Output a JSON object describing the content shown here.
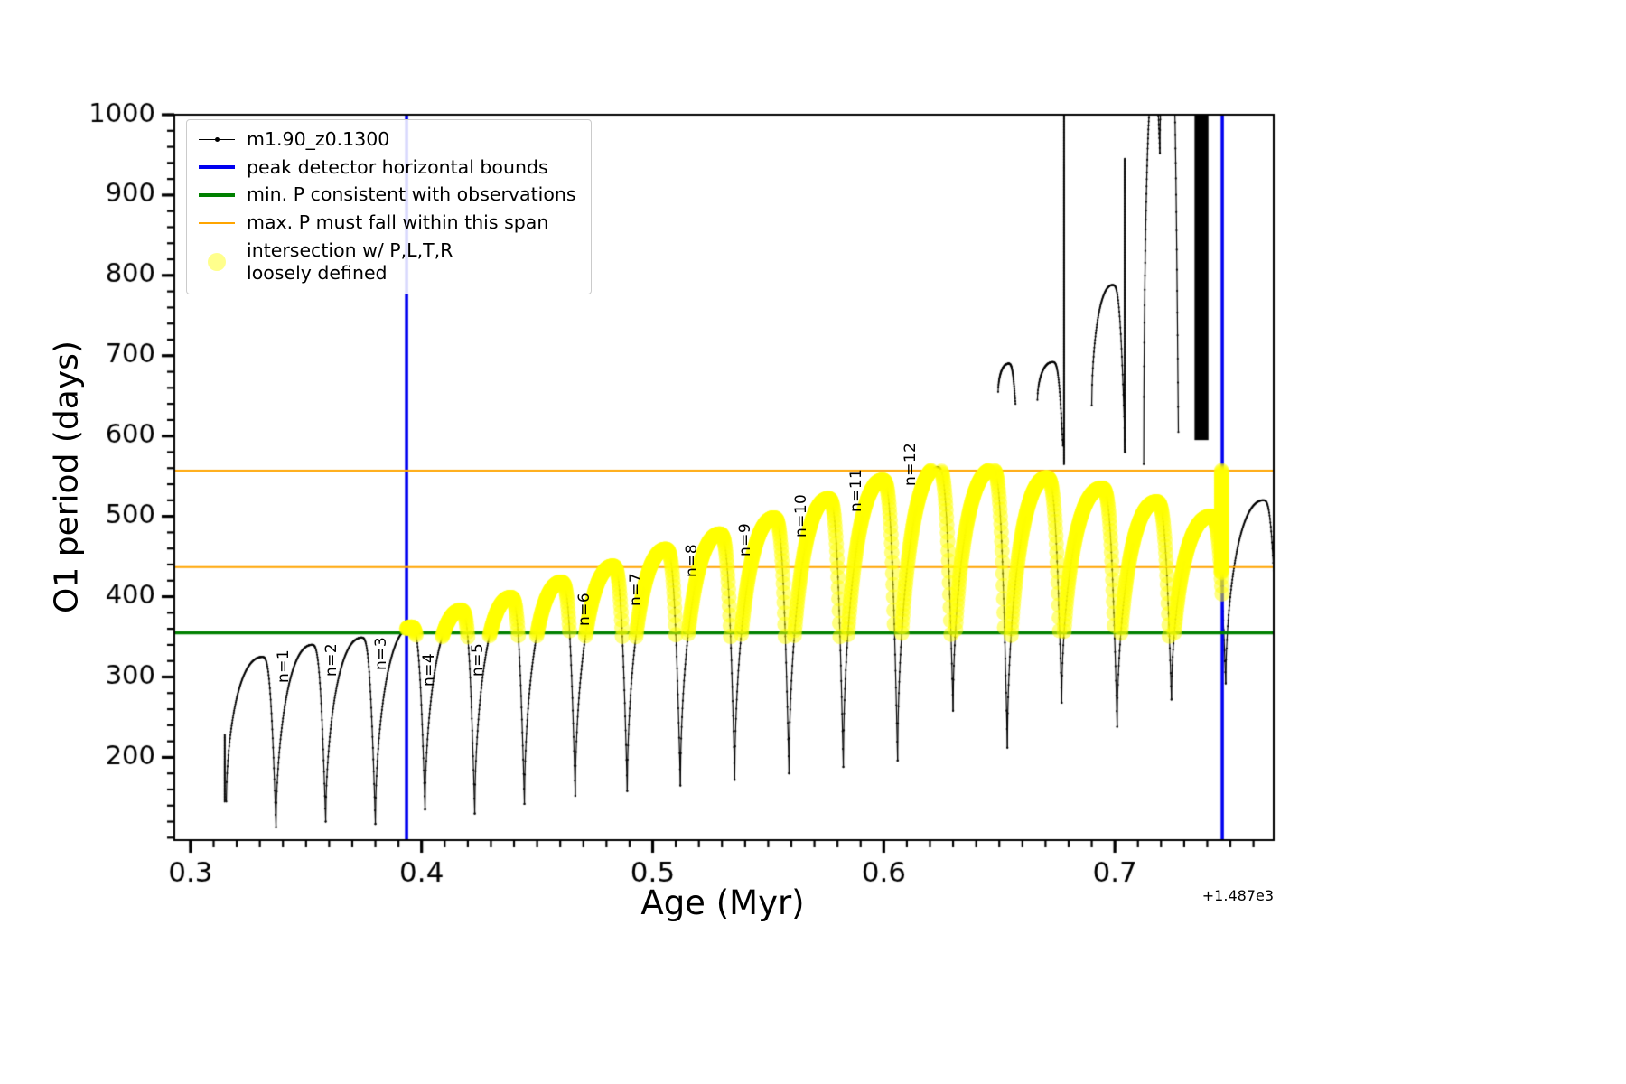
{
  "chart_data": {
    "type": "line",
    "title": "",
    "xlabel": "Age (Myr)",
    "ylabel": "O1 period (days)",
    "x_offset_text": "+1.487e3",
    "xlim": [
      0.293,
      0.76875
    ],
    "ylim": [
      97,
      1000
    ],
    "x_major_ticks": [
      0.3,
      0.4,
      0.5,
      0.6,
      0.7
    ],
    "x_tick_labels": [
      "0.3",
      "0.4",
      "0.5",
      "0.6",
      "0.7"
    ],
    "x_minor_step": 0.01,
    "y_major_ticks": [
      200,
      300,
      400,
      500,
      600,
      700,
      800,
      900,
      1000
    ],
    "y_tick_labels": [
      "200",
      "300",
      "400",
      "500",
      "600",
      "700",
      "800",
      "900",
      "1000"
    ],
    "y_minor_step": 20,
    "grid": false,
    "legend_position": "upper left",
    "legend": {
      "items": [
        {
          "label": "m1.90_z0.1300",
          "marker": "line-with-dot",
          "color": "#000000"
        },
        {
          "label": "peak detector horizontal bounds",
          "marker": "thick-line",
          "color": "#0000f0"
        },
        {
          "label": "min. P consistent with observations",
          "marker": "thick-line",
          "color": "#008000"
        },
        {
          "label": "max. P must fall within this span",
          "marker": "thin-line",
          "color": "#ffa500"
        },
        {
          "label": "intersection w/ P,L,T,R\nloosely defined",
          "marker": "circle",
          "color": "#ffff00"
        }
      ]
    },
    "vlines": {
      "color": "#0000f0",
      "x": [
        0.3935,
        0.7465
      ],
      "linewidth": 3.5
    },
    "hlines_green": {
      "color": "#008000",
      "y": [
        355
      ],
      "linewidth": 3.5
    },
    "hlines_orange": {
      "color": "#ffa500",
      "y": [
        557,
        437
      ],
      "linewidth": 2
    },
    "yellow_band": {
      "color": "#ffff00",
      "alpha": 0.5,
      "y_range": [
        350,
        557
      ],
      "x_range": [
        0.3935,
        0.7465
      ],
      "marker_radius": 8.5
    },
    "series": {
      "name": "m1.90_z0.1300",
      "color": "#000000",
      "arcs": [
        [
          0.3155,
          0.337,
          145,
          325,
          113
        ],
        [
          0.337,
          0.3585,
          113,
          340,
          120
        ],
        [
          0.3585,
          0.38,
          120,
          349,
          117
        ],
        [
          0.38,
          0.4015,
          117,
          362,
          135
        ],
        [
          0.4015,
          0.423,
          135,
          383,
          130
        ],
        [
          0.423,
          0.4445,
          130,
          399,
          142
        ],
        [
          0.4445,
          0.4665,
          142,
          418,
          152
        ],
        [
          0.4665,
          0.489,
          152,
          438,
          158
        ],
        [
          0.489,
          0.512,
          158,
          459,
          165
        ],
        [
          0.512,
          0.5355,
          165,
          478,
          172
        ],
        [
          0.5355,
          0.559,
          172,
          498,
          180
        ],
        [
          0.559,
          0.5825,
          180,
          522,
          188
        ],
        [
          0.5825,
          0.606,
          188,
          545,
          196
        ],
        [
          0.606,
          0.63,
          196,
          561,
          258
        ],
        [
          0.63,
          0.6535,
          258,
          558,
          212
        ],
        [
          0.6535,
          0.677,
          212,
          548,
          268
        ],
        [
          0.677,
          0.701,
          268,
          535,
          238
        ],
        [
          0.701,
          0.7245,
          238,
          518,
          272
        ],
        [
          0.7245,
          0.748,
          272,
          500,
          292
        ],
        [
          0.748,
          0.7705,
          292,
          520,
          300
        ],
        [
          0.6495,
          0.657,
          655,
          690,
          640,
          0.6
        ],
        [
          0.6665,
          0.6775,
          645,
          692,
          588,
          0.6
        ],
        [
          0.69,
          0.7045,
          638,
          788,
          580,
          0.62
        ],
        [
          0.7125,
          0.7195,
          565,
          1045,
          952,
          0.6
        ],
        [
          0.7195,
          0.7275,
          952,
          1110,
          605,
          0.55
        ]
      ],
      "spikes": [
        [
          0.3148,
          145,
          228
        ],
        [
          0.678,
          565,
          1000
        ],
        [
          0.7043,
          580,
          945
        ],
        [
          0.7462,
          430,
          557
        ]
      ],
      "solid_band": [
        0.7345,
        0.7405,
        595,
        1002
      ]
    },
    "peak_labels": [
      {
        "text": "n=1",
        "x": 0.339,
        "y": 293
      },
      {
        "text": "n=2",
        "x": 0.36,
        "y": 300
      },
      {
        "text": "n=3",
        "x": 0.3812,
        "y": 308
      },
      {
        "text": "n=4",
        "x": 0.4022,
        "y": 288
      },
      {
        "text": "n=5",
        "x": 0.4232,
        "y": 300
      },
      {
        "text": "n=6",
        "x": 0.4692,
        "y": 363
      },
      {
        "text": "n=7",
        "x": 0.4914,
        "y": 388
      },
      {
        "text": "n=8",
        "x": 0.5158,
        "y": 424
      },
      {
        "text": "n=9",
        "x": 0.539,
        "y": 450
      },
      {
        "text": "n=10",
        "x": 0.5633,
        "y": 474
      },
      {
        "text": "n=11",
        "x": 0.587,
        "y": 505
      },
      {
        "text": "n=12",
        "x": 0.6106,
        "y": 538
      }
    ]
  }
}
